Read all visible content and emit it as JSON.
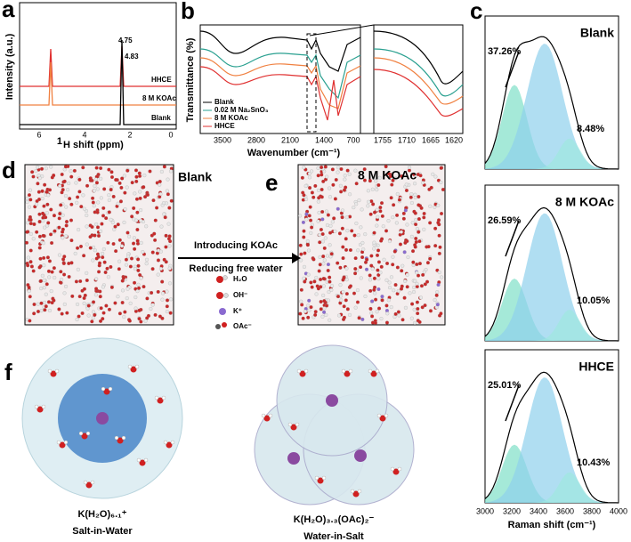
{
  "panel_a": {
    "label": "a",
    "ylabel": "Intensity (a.u.)",
    "xlabel_sup": "1",
    "xlabel": "H shift (ppm)",
    "xticks": [
      "6",
      "4",
      "2",
      "0"
    ],
    "peaks": [
      "4.75",
      "4.83"
    ],
    "traces": [
      "HHCE",
      "8 M KOAc",
      "Blank"
    ]
  },
  "panel_b": {
    "label": "b",
    "ylabel": "Transmittance (%)",
    "xlabel": "Wavenumber (cm⁻¹)",
    "legend": [
      "Blank",
      "0.02 M Na₂SnO₃",
      "8 M KOAc",
      "HHCE"
    ],
    "xticks": [
      "3500",
      "2800",
      "2100",
      "1400",
      "700"
    ],
    "inset_xticks": [
      "1755",
      "1710",
      "1665",
      "1620"
    ]
  },
  "panel_c": {
    "label": "c",
    "plots": [
      {
        "title": "Blank",
        "left": "37.26%",
        "right": "8.48%"
      },
      {
        "title": "8 M KOAc",
        "left": "26.59%",
        "right": "10.05%"
      },
      {
        "title": "HHCE",
        "left": "25.01%",
        "right": "10.43%"
      }
    ],
    "xticks": [
      "3000",
      "3200",
      "3400",
      "3600",
      "3800",
      "4000"
    ],
    "xlabel": "Raman shift (cm⁻¹)"
  },
  "panel_d": {
    "label": "d",
    "title": "Blank"
  },
  "panel_e": {
    "label": "e",
    "title": "8 M KOAc"
  },
  "arrow": {
    "top": "Introducing KOAc",
    "bottom": "Reducing free water"
  },
  "legend": [
    "H₂O",
    "OH⁻",
    "K⁺",
    "OAc⁻"
  ],
  "panel_f": {
    "label": "f",
    "left_formula": "K(H₂O)₆.₁⁺",
    "left_caption": "Salt-in-Water",
    "right_formula": "K(H₂O)₃.₃(OAc)₂⁻",
    "right_caption": "Water-in-Salt"
  }
}
